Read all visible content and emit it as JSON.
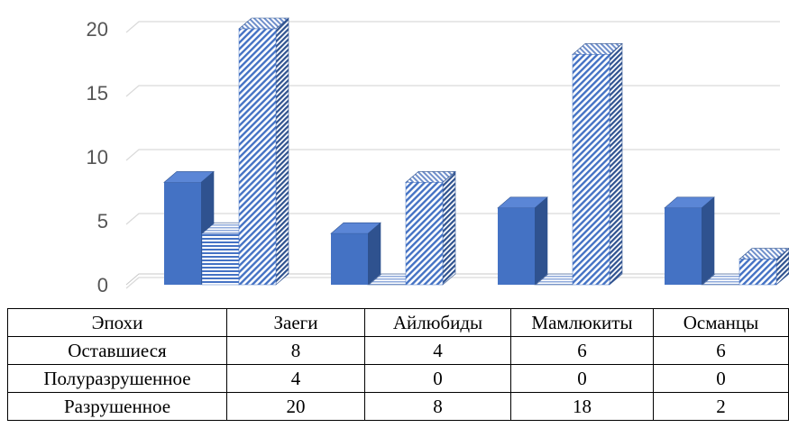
{
  "chart_data": {
    "type": "bar",
    "categories": [
      "Заеги",
      "Айлюбиды",
      "Мамлюкиты",
      "Османцы"
    ],
    "series": [
      {
        "name": "Оставшиеся",
        "values": [
          8,
          4,
          6,
          6
        ],
        "color": "#4472C4",
        "pattern": "solid"
      },
      {
        "name": "Полуразрушенное",
        "values": [
          4,
          0,
          0,
          0
        ],
        "color": "#4472C4",
        "pattern": "horizontal-lines"
      },
      {
        "name": "Разрушенное",
        "values": [
          20,
          8,
          18,
          2
        ],
        "color": "#4472C4",
        "pattern": "diagonal-hatch"
      }
    ],
    "ylim": [
      0,
      20
    ],
    "yticks": [
      "0",
      "5",
      "10",
      "15",
      "20"
    ],
    "grid": true,
    "style": "3d-clustered-column"
  },
  "table": {
    "header_label": "Эпохи"
  }
}
